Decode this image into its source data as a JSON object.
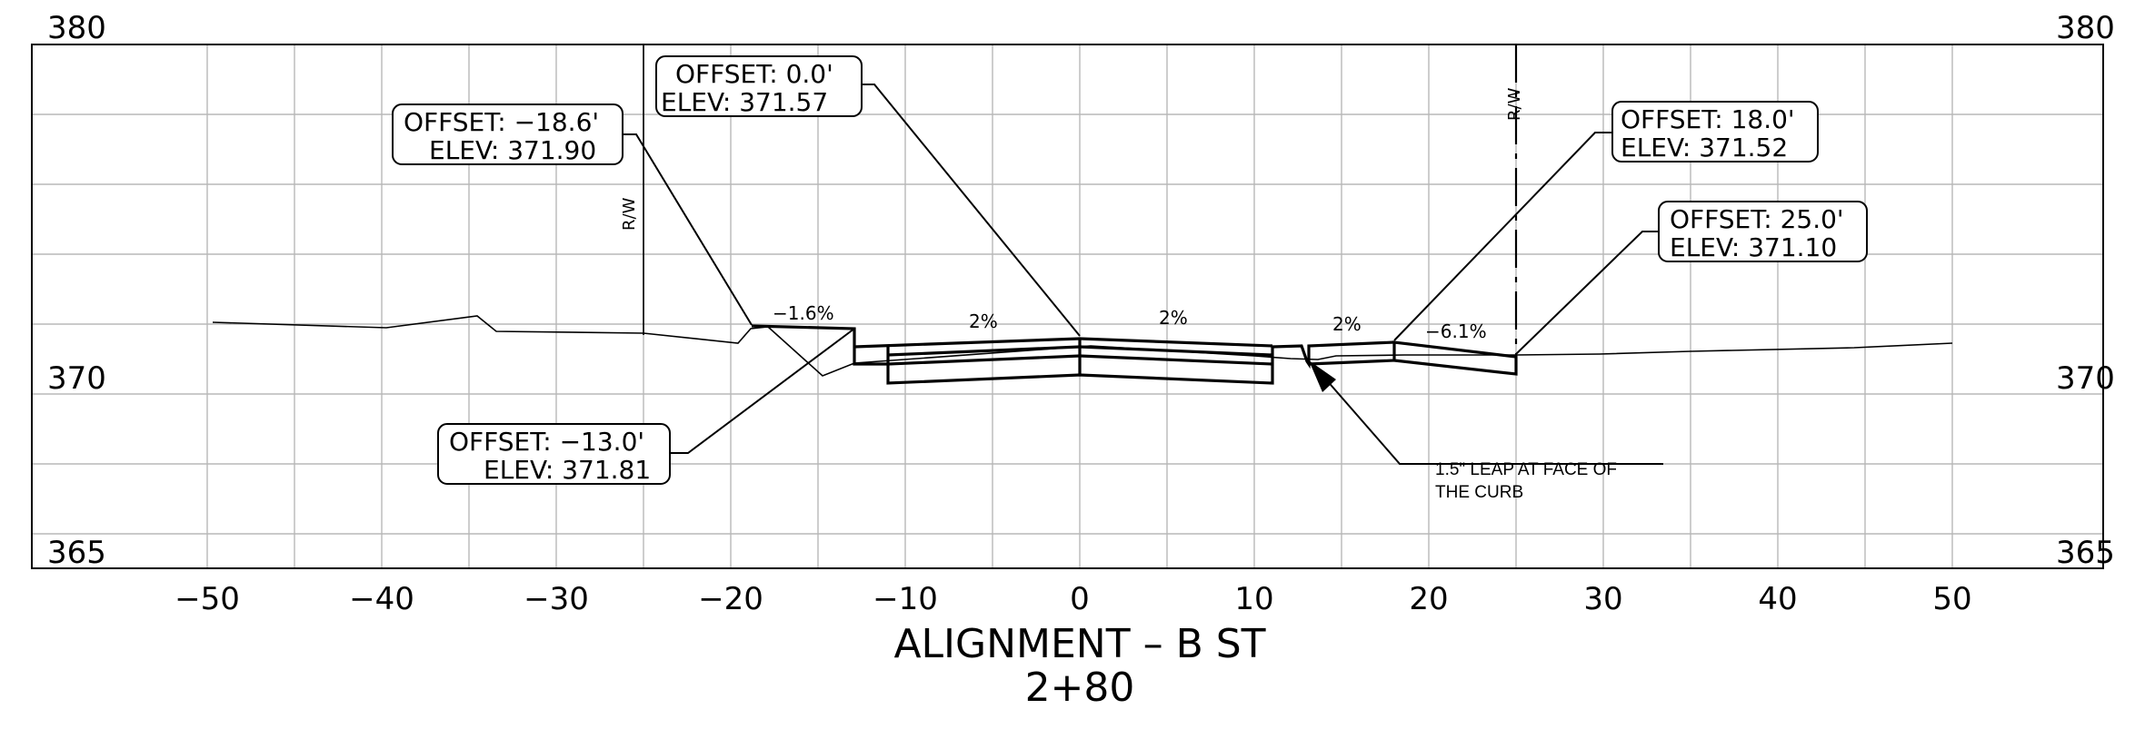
{
  "elevation_labels": {
    "top": "380",
    "middle": "370",
    "bottom": "365"
  },
  "offset_ticks": [
    "−50",
    "−40",
    "−30",
    "−20",
    "−10",
    "0",
    "10",
    "20",
    "30",
    "40",
    "50"
  ],
  "slopes": {
    "s1": "−1.6%",
    "s2": "2%",
    "s3": "2%",
    "s4": "2%",
    "s5": "−6.1%"
  },
  "right_of_way": {
    "left": "R/W",
    "right": "R/W"
  },
  "callouts": {
    "c1": {
      "offset": "OFFSET:  0.0'",
      "elev": "ELEV:  371.57"
    },
    "c2": {
      "offset": "OFFSET:  −18.6'",
      "elev": "ELEV:  371.90"
    },
    "c3": {
      "offset": "OFFSET:  18.0'",
      "elev": "ELEV:  371.52"
    },
    "c4": {
      "offset": "OFFSET:  25.0'",
      "elev": "ELEV:  371.10"
    },
    "c5": {
      "offset": "OFFSET:  −13.0'",
      "elev": "ELEV:  371.81"
    }
  },
  "note": {
    "line1": "1.5\" LEAP AT FACE OF",
    "line2": "THE CURB"
  },
  "title": {
    "alignment": "ALIGNMENT  –  B  ST",
    "station": "2+80"
  }
}
